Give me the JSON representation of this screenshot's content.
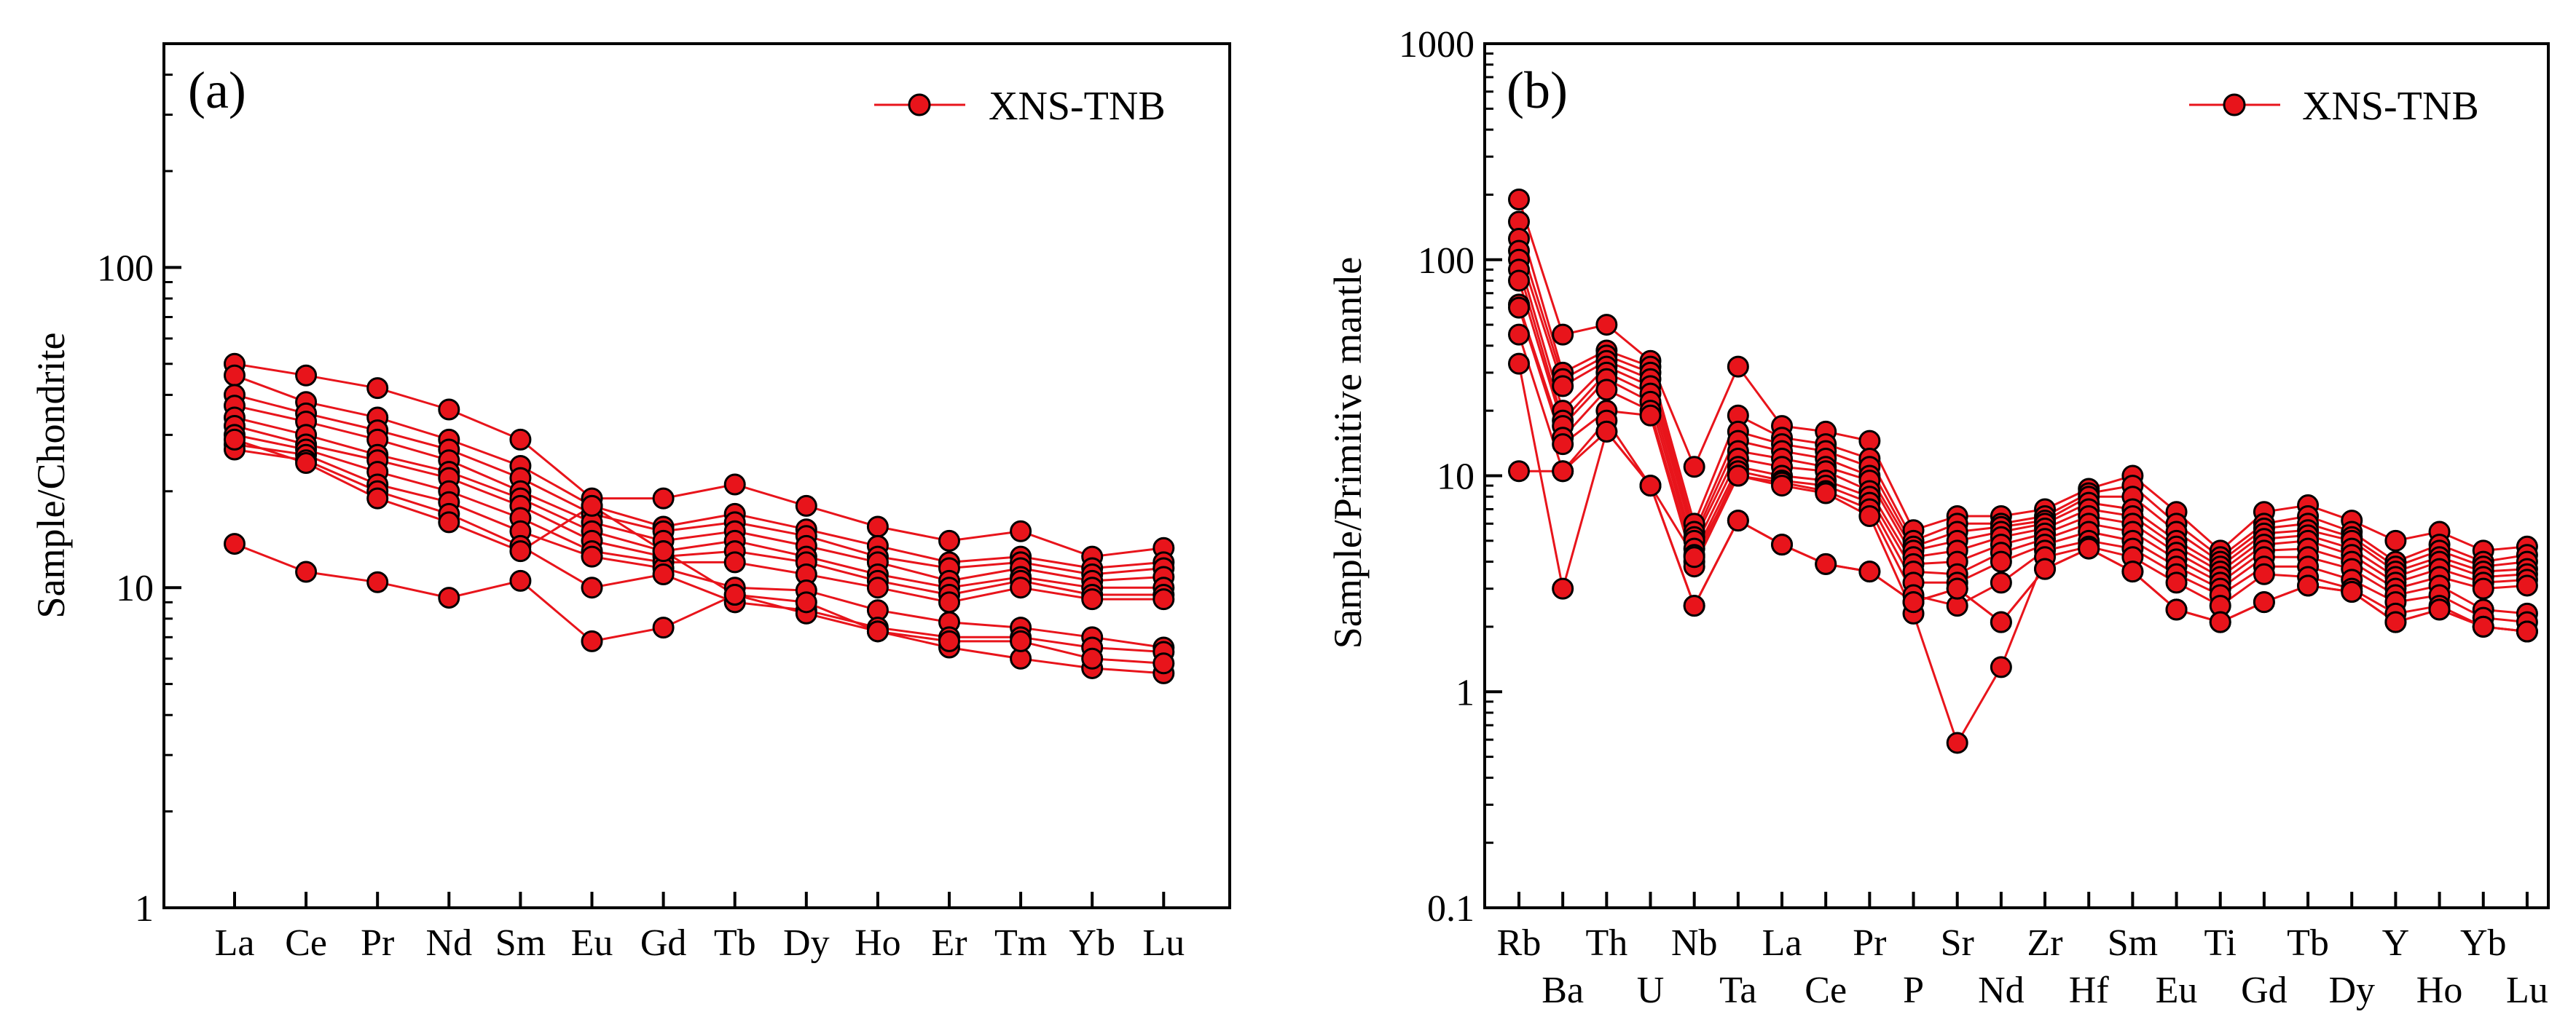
{
  "colors": {
    "series": "#E8141B",
    "marker_fill": "#E8141B",
    "marker_edge": "#000000",
    "axis": "#000000"
  },
  "chart_data": [
    {
      "type": "line",
      "panel_label": "(a)",
      "ylabel": "Sample/Chondrite",
      "yscale": "log",
      "ylim": [
        1,
        500
      ],
      "yticks": [
        1,
        10,
        100
      ],
      "yticklabels": [
        "1",
        "10",
        "100"
      ],
      "categories": [
        "La",
        "Ce",
        "Pr",
        "Nd",
        "Sm",
        "Eu",
        "Gd",
        "Tb",
        "Dy",
        "Ho",
        "Er",
        "Tm",
        "Yb",
        "Lu"
      ],
      "legend": {
        "label": "XNS-TNB",
        "position": "top-right"
      },
      "series": [
        {
          "values": [
            50,
            46,
            42,
            36,
            29,
            19,
            19,
            21,
            18,
            15.5,
            14,
            15,
            12.5,
            13.3
          ]
        },
        {
          "values": [
            46,
            38,
            34,
            29,
            24,
            18,
            15.5,
            17,
            15.2,
            13.5,
            12,
            12.5,
            11.5,
            12
          ]
        },
        {
          "values": [
            40,
            35,
            31,
            27,
            22,
            17,
            15,
            16,
            14.5,
            12.5,
            11.5,
            12,
            11,
            11.5
          ]
        },
        {
          "values": [
            37,
            33,
            29,
            25,
            20,
            16,
            14,
            15,
            13.5,
            12,
            10.5,
            11.5,
            10.5,
            10.8
          ]
        },
        {
          "values": [
            34,
            30,
            26,
            23,
            19,
            15,
            13,
            14,
            12.5,
            11,
            10,
            10.8,
            10,
            10
          ]
        },
        {
          "values": [
            32,
            28,
            25,
            22,
            18,
            14,
            12.5,
            13,
            12,
            10.5,
            9.5,
            10.5,
            9.5,
            9.5
          ]
        },
        {
          "values": [
            30,
            27,
            23,
            20,
            16.5,
            13,
            12,
            12,
            11,
            10,
            9,
            10,
            9.2,
            9.2
          ]
        },
        {
          "values": [
            28,
            26,
            21,
            18.5,
            15,
            12.5,
            11.5,
            10,
            9.8,
            8.5,
            7.8,
            7.5,
            7,
            6.5
          ]
        },
        {
          "values": [
            27,
            25,
            20,
            17,
            13.5,
            10,
            11,
            9,
            8.5,
            7.5,
            7,
            7,
            6.5,
            6.3
          ]
        },
        {
          "values": [
            29,
            24.5,
            19,
            16,
            13,
            18,
            13,
            9.5,
            8.3,
            7.3,
            6.5,
            6,
            5.6,
            5.4
          ]
        },
        {
          "values": [
            13.7,
            11.2,
            10.4,
            9.3,
            10.5,
            6.8,
            7.5,
            9.5,
            9,
            7.3,
            6.8,
            6.8,
            6,
            5.8
          ]
        }
      ]
    },
    {
      "type": "line",
      "panel_label": "(b)",
      "ylabel": "Sample/Primitive mantle",
      "yscale": "log",
      "ylim": [
        0.1,
        1000
      ],
      "yticks": [
        0.1,
        1,
        10,
        100,
        1000
      ],
      "yticklabels": [
        "0.1",
        "1",
        "10",
        "100",
        "1000"
      ],
      "categories": [
        "Rb",
        "Ba",
        "Th",
        "U",
        "Nb",
        "Ta",
        "La",
        "Ce",
        "Pr",
        "P",
        "Sr",
        "Nd",
        "Zr",
        "Hf",
        "Sm",
        "Eu",
        "Ti",
        "Gd",
        "Tb",
        "Dy",
        "Y",
        "Ho",
        "Yb",
        "Lu"
      ],
      "legend": {
        "label": "XNS-TNB",
        "position": "top-right"
      },
      "series": [
        {
          "values": [
            190,
            45,
            50,
            34,
            11,
            32,
            17,
            16,
            14.5,
            5.6,
            6.5,
            6.5,
            7,
            8.7,
            10,
            6.8,
            4.5,
            6.8,
            7.3,
            6.2,
            5,
            5.5,
            4.5,
            4.7
          ]
        },
        {
          "values": [
            150,
            30,
            38,
            32,
            6,
            19,
            15,
            14,
            12,
            5,
            6,
            6,
            6.5,
            8.3,
            9,
            6,
            4.2,
            6,
            6.5,
            5.5,
            4,
            4.8,
            4,
            4.3
          ]
        },
        {
          "values": [
            125,
            28,
            36,
            30,
            5.5,
            16,
            14,
            13,
            11,
            4.7,
            5.5,
            5.8,
            6.2,
            8,
            8,
            5.5,
            4,
            5.7,
            6,
            5.2,
            3.8,
            4.5,
            3.8,
            4
          ]
        },
        {
          "values": [
            110,
            26,
            34,
            28,
            5.2,
            14.5,
            13,
            12,
            10,
            4.5,
            5,
            5.5,
            6,
            7.5,
            7,
            5,
            3.8,
            5.4,
            5.6,
            5,
            3.6,
            4.2,
            3.6,
            3.7
          ]
        },
        {
          "values": [
            100,
            20,
            32,
            26,
            5,
            13,
            12,
            11,
            9.5,
            4.2,
            4.5,
            5.2,
            5.7,
            7,
            6.5,
            4.7,
            3.6,
            5.1,
            5.3,
            4.6,
            3.4,
            4,
            3.4,
            3.5
          ]
        },
        {
          "values": [
            90,
            18,
            30,
            24,
            4.6,
            12,
            11,
            10.5,
            8.5,
            3.9,
            4,
            4.8,
            5.4,
            6.5,
            6,
            4.4,
            3.4,
            4.8,
            5,
            4.3,
            3.2,
            3.7,
            3.2,
            3.3
          ]
        },
        {
          "values": [
            80,
            17,
            28,
            22,
            4.3,
            11,
            10,
            9.5,
            8,
            3.6,
            3.5,
            4.4,
            5.1,
            6,
            5.5,
            4.1,
            3.2,
            4.5,
            4.6,
            4,
            3,
            3.4,
            3,
            3.1
          ]
        },
        {
          "values": [
            62,
            15,
            25,
            20,
            4,
            10.5,
            9.5,
            9,
            7.5,
            3.2,
            3.2,
            4,
            4.8,
            5.5,
            5,
            3.8,
            3,
            4.2,
            4.2,
            3.7,
            2.8,
            3.1,
            2.4,
            2.3
          ]
        },
        {
          "values": [
            60,
            14,
            20,
            19,
            3.8,
            10,
            9.3,
            8.5,
            7,
            2.8,
            2.5,
            3.2,
            4.5,
            5,
            4.6,
            3.5,
            2.8,
            3.8,
            3.8,
            3.3,
            2.6,
            2.8,
            2.2,
            2.1
          ]
        },
        {
          "values": [
            45,
            10.5,
            18,
            9,
            4.2,
            10,
            9,
            8.3,
            6.5,
            2.3,
            0.58,
            1.3,
            4.2,
            4.7,
            4.2,
            3.2,
            2.5,
            3.5,
            3.4,
            3,
            2.3,
            2.5,
            2,
            1.9
          ]
        },
        {
          "values": [
            33,
            3,
            16,
            9,
            2.5,
            6.2,
            4.8,
            3.9,
            3.6,
            2.6,
            3,
            2.1,
            3.7,
            4.6,
            3.6,
            2.4,
            2.1,
            2.6,
            3.1,
            2.9,
            2.1,
            2.4,
            2,
            1.9
          ]
        },
        {
          "values": [
            10.5,
            10.5,
            16,
            9,
            2.5,
            6.2,
            4.8,
            3.9,
            3.6,
            2.6,
            3,
            2.1,
            3.7,
            4.6,
            3.6,
            2.4,
            2.1,
            2.6,
            3.1,
            2.9,
            2.1,
            2.4,
            2,
            1.9
          ]
        }
      ]
    }
  ]
}
